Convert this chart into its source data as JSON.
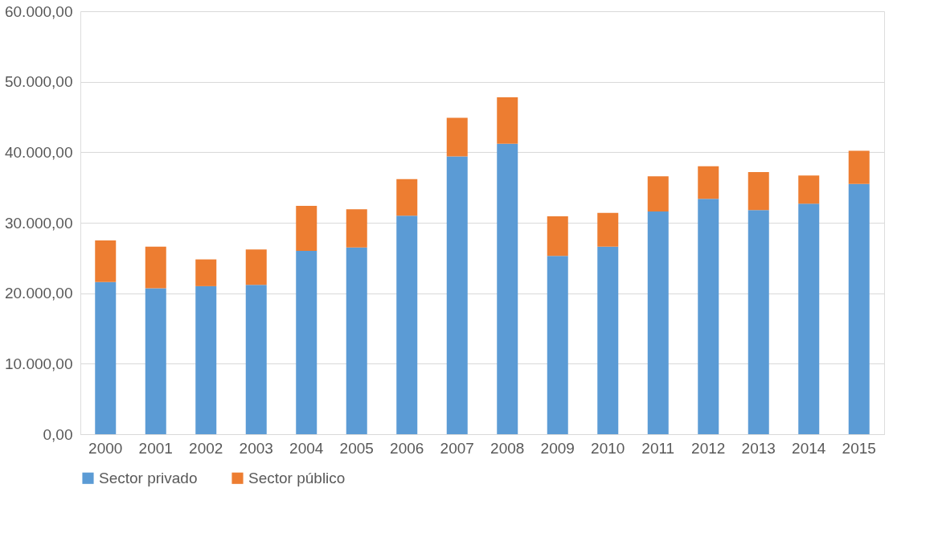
{
  "chart_data": {
    "type": "bar",
    "stacked": true,
    "categories": [
      "2000",
      "2001",
      "2002",
      "2003",
      "2004",
      "2005",
      "2006",
      "2007",
      "2008",
      "2009",
      "2010",
      "2011",
      "2012",
      "2013",
      "2014",
      "2015"
    ],
    "series": [
      {
        "name": "Sector privado",
        "color": "#5b9bd5",
        "values": [
          21600,
          20700,
          21000,
          21200,
          26000,
          26500,
          31000,
          39400,
          41200,
          25300,
          26600,
          31600,
          33400,
          31800,
          32700,
          35500
        ]
      },
      {
        "name": "Sector público",
        "color": "#ed7d31",
        "values": [
          5900,
          5900,
          3800,
          5000,
          6400,
          5400,
          5200,
          5500,
          6600,
          5600,
          4800,
          5000,
          4600,
          5400,
          4000,
          4700
        ]
      }
    ],
    "ylim": [
      0,
      60000
    ],
    "yticks": [
      {
        "value": 0,
        "label": "0,00"
      },
      {
        "value": 10000,
        "label": "10.000,00"
      },
      {
        "value": 20000,
        "label": "20.000,00"
      },
      {
        "value": 30000,
        "label": "30.000,00"
      },
      {
        "value": 40000,
        "label": "40.000,00"
      },
      {
        "value": 50000,
        "label": "50.000,00"
      },
      {
        "value": 60000,
        "label": "60.000,00"
      }
    ],
    "grid": "y",
    "legend": "bottom"
  }
}
